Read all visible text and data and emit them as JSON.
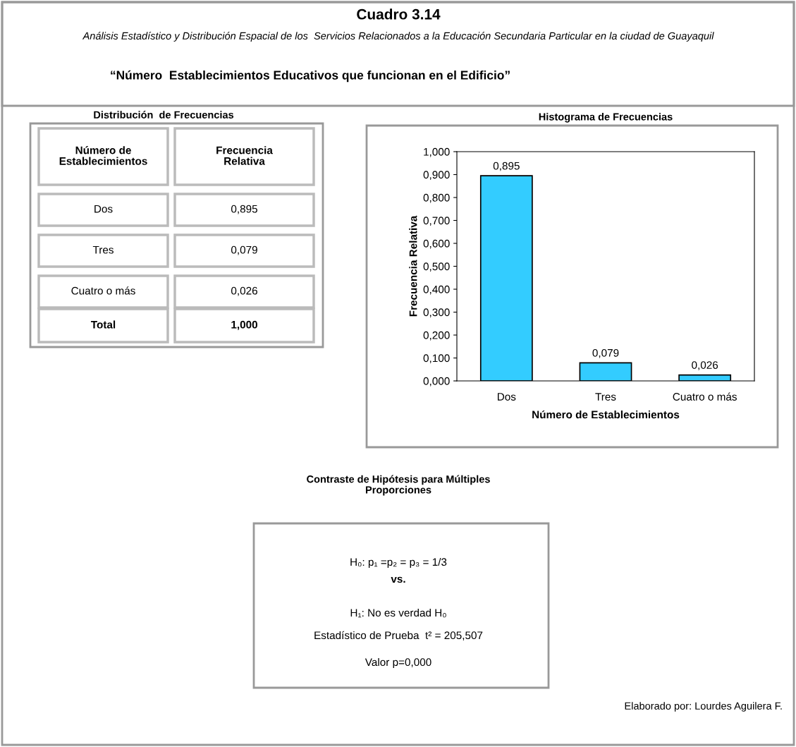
{
  "chart_data": [
    {
      "type": "other",
      "title": "Cuadro 3.14",
      "subtitle": "Análisis Estadístico y Distribución Espacial de los  Servicios Relacionados a la Educación Secundaria Particular en la ciudad de Guayaquil",
      "annotations": [
        "“Número  Establecimientos Educativos que funcionan en el Edificio”",
        "Elaborado por: Lourdes Aguilera F."
      ]
    },
    {
      "type": "other",
      "title": "Distribución  de Frecuencias",
      "annotations": [
        "Número de\nEstablecimientos",
        "Frecuencia\nRelativa",
        "Dos",
        "0,895",
        "Tres",
        "0,079",
        "Cuatro o más",
        "0,026",
        "Total",
        "1,000"
      ]
    },
    {
      "type": "bar",
      "title": "Histograma de Frecuencias",
      "xlabel": "Número de Establecimientos",
      "ylabel": "Frecuencia Relativa",
      "categories": [
        "Dos",
        "Tres",
        "Cuatro o más"
      ],
      "values": [
        0.895,
        0.079,
        0.026
      ],
      "color": "#33ccff",
      "value_labels": [
        "0,895",
        "0,079",
        "0,026"
      ],
      "ylim": [
        0,
        1
      ],
      "yticks": [
        {
          "value": 0,
          "label": "0,000"
        },
        {
          "value": 0.1,
          "label": "0,100"
        },
        {
          "value": 0.2,
          "label": "0,200"
        },
        {
          "value": 0.3,
          "label": "0,300"
        },
        {
          "value": 0.4,
          "label": "0,400"
        },
        {
          "value": 0.5,
          "label": "0,500"
        },
        {
          "value": 0.6,
          "label": "0,600"
        },
        {
          "value": 0.7,
          "label": "0,700"
        },
        {
          "value": 0.8,
          "label": "0,800"
        },
        {
          "value": 0.9,
          "label": "0,900"
        },
        {
          "value": 1,
          "label": "1,000"
        }
      ],
      "grid": false,
      "legend": false
    },
    {
      "type": "other",
      "title": "Contraste de Hipótesis para Múltiples\nProporciones",
      "annotations": [
        "H₀: p₁ =p₂ = p₃ = 1/3",
        "vs.",
        "H₁: No es verdad H₀",
        "Estadístico de Prueba  t² = 205,507",
        "Valor p=0,000"
      ]
    }
  ]
}
